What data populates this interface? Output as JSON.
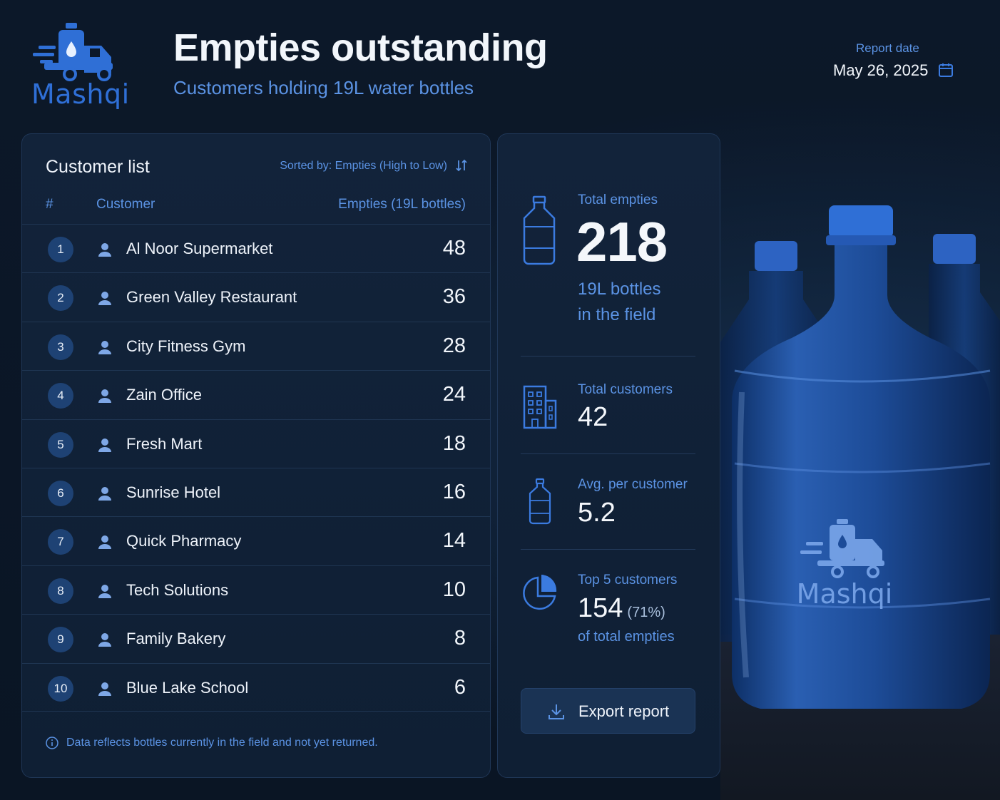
{
  "brand": {
    "name": "Mashqi",
    "accent": "#2f6fd6",
    "label_color": "#5b93e4"
  },
  "header": {
    "title": "Empties outstanding",
    "subtitle": "Customers holding 19L water bottles",
    "report_date_label": "Report date",
    "report_date": "May 26, 2025",
    "calendar_icon": "calendar-icon"
  },
  "customer_list": {
    "title": "Customer list",
    "sorted_by": "Sorted by: Empties (High to Low)",
    "columns": {
      "num": "#",
      "customer": "Customer",
      "empties": "Empties (19L bottles)"
    },
    "rows": [
      {
        "rank": "1",
        "name": "Al Noor Supermarket",
        "empties": "48"
      },
      {
        "rank": "2",
        "name": "Green Valley Restaurant",
        "empties": "36"
      },
      {
        "rank": "3",
        "name": "City Fitness Gym",
        "empties": "28"
      },
      {
        "rank": "4",
        "name": "Zain Office",
        "empties": "24"
      },
      {
        "rank": "5",
        "name": "Fresh Mart",
        "empties": "18"
      },
      {
        "rank": "6",
        "name": "Sunrise Hotel",
        "empties": "16"
      },
      {
        "rank": "7",
        "name": "Quick Pharmacy",
        "empties": "14"
      },
      {
        "rank": "8",
        "name": "Tech Solutions",
        "empties": "10"
      },
      {
        "rank": "9",
        "name": "Family Bakery",
        "empties": "8"
      },
      {
        "rank": "10",
        "name": "Blue Lake School",
        "empties": "6"
      }
    ],
    "footnote": "Data reflects bottles currently in the field and not yet returned."
  },
  "stats": {
    "total_empties": {
      "label": "Total empties",
      "value": "218",
      "sub_line1": "19L bottles",
      "sub_line2": "in the field"
    },
    "total_customers": {
      "label": "Total customers",
      "value": "42"
    },
    "avg_per_customer": {
      "label": "Avg. per customer",
      "value": "5.2"
    },
    "top5": {
      "label": "Top 5 customers",
      "value": "154",
      "percent": "(71%)",
      "sub": "of total empties"
    }
  },
  "actions": {
    "export": "Export report"
  },
  "illustration": {
    "bottle_logo_text": "Mashqi"
  }
}
